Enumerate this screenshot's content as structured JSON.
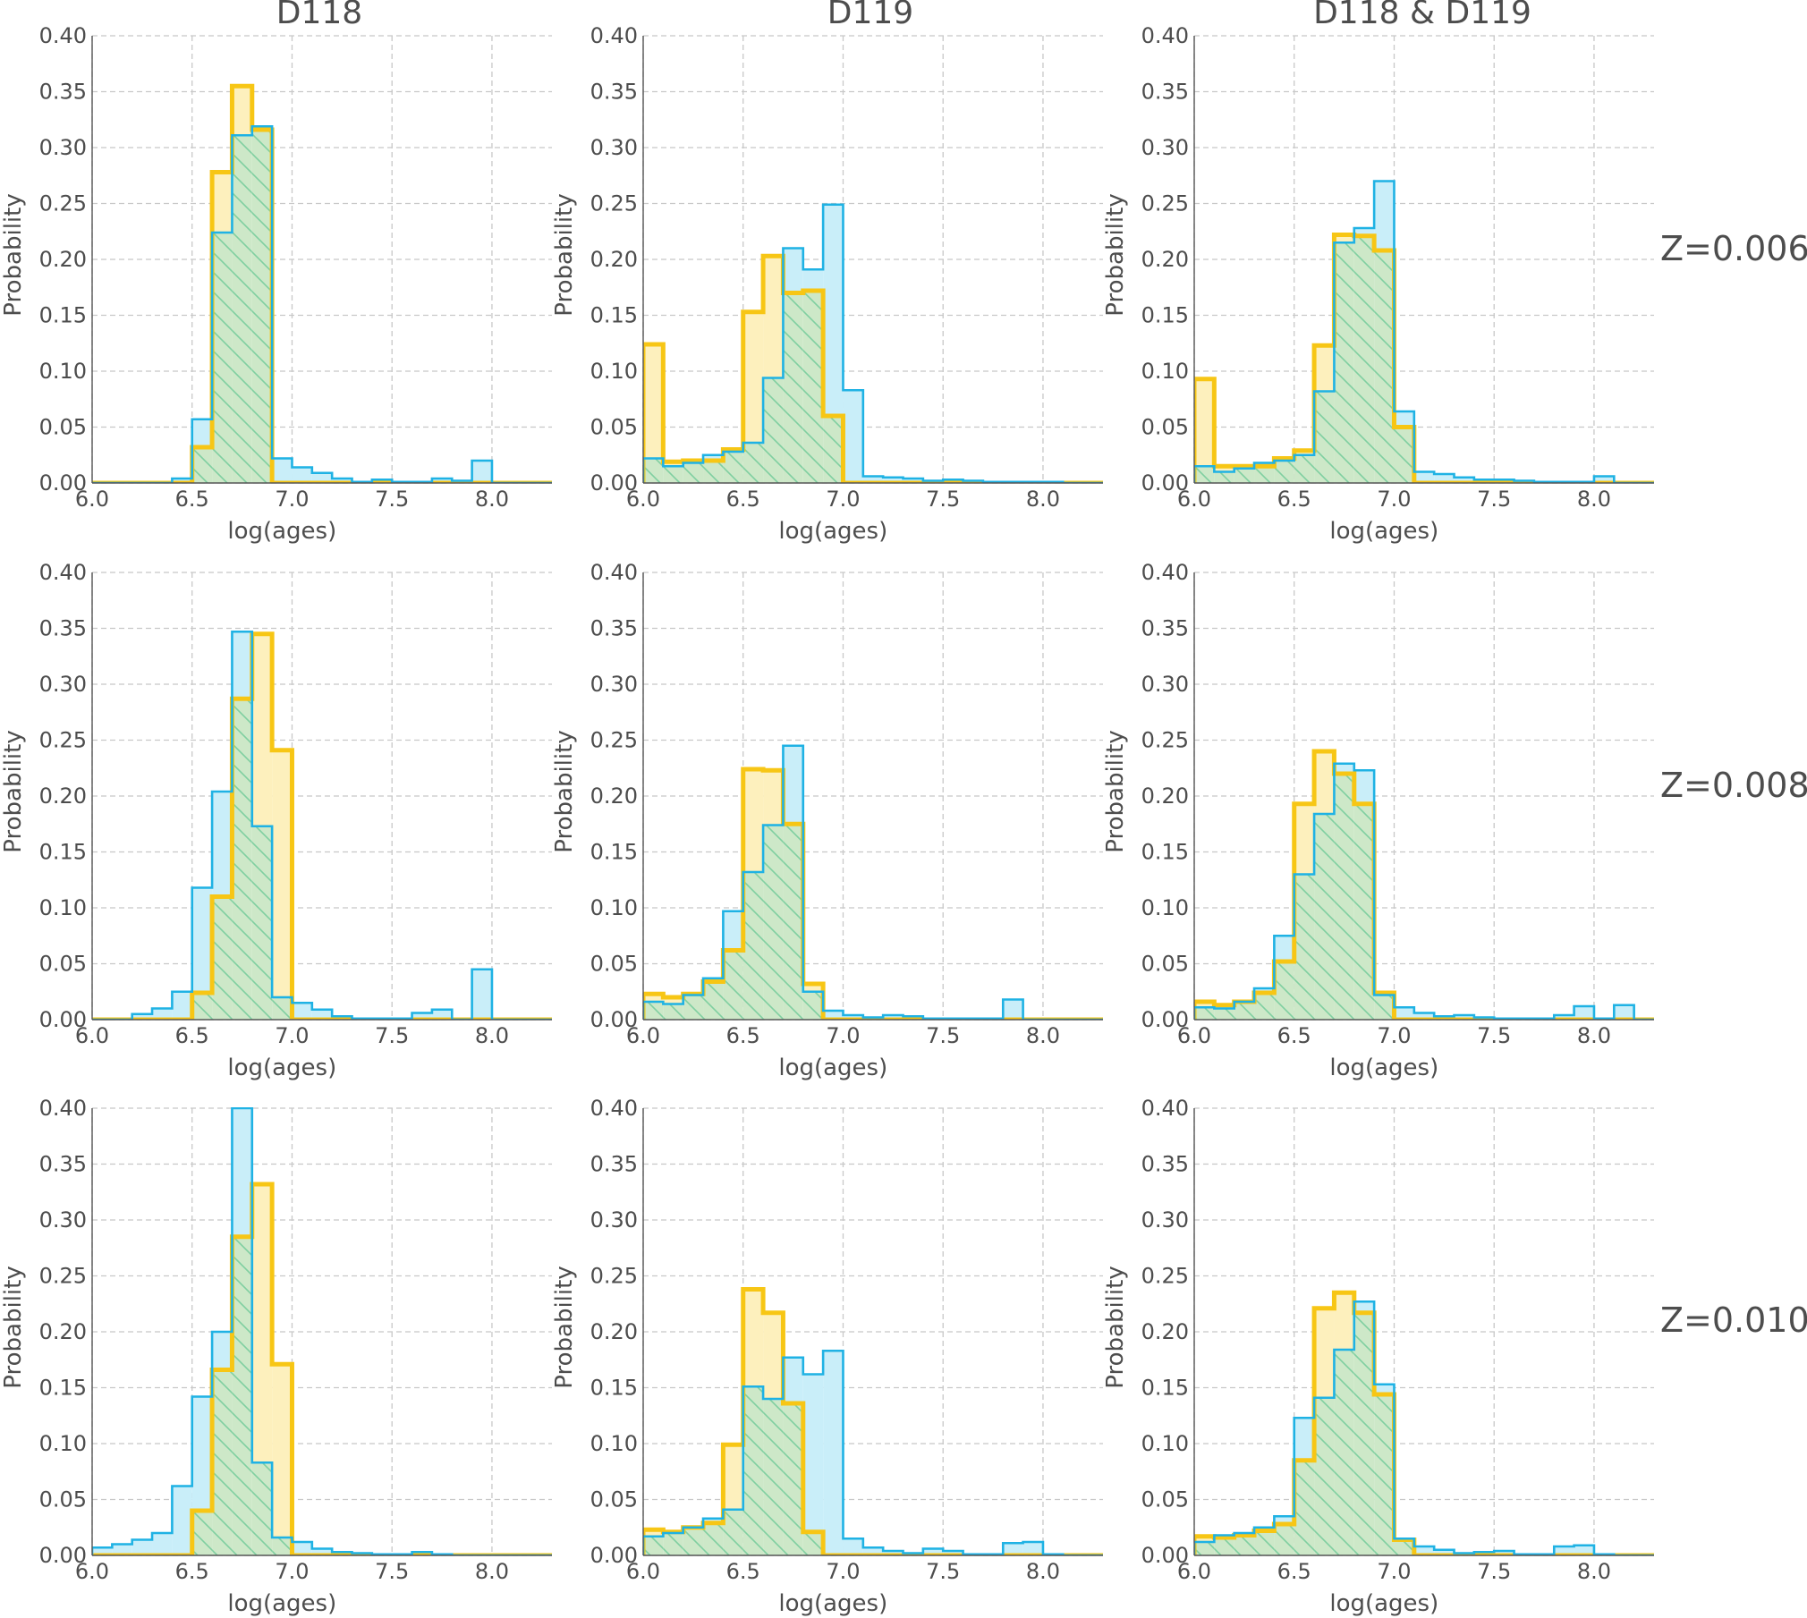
{
  "figure": {
    "columns": [
      "D118",
      "D119",
      "D118 & D119"
    ],
    "rows": [
      "Z=0.006",
      "Z=0.008",
      "Z=0.010"
    ],
    "xlabel": "log(ages)",
    "ylabel": "Probability",
    "colors": {
      "yellow": "#F7C615",
      "blue": "#1FB2E4",
      "overlap_fill": "#cde8c8",
      "hatch": "#7fcfa0",
      "grid": "#c8c8c8",
      "text": "#4d4d4d"
    }
  },
  "chart_data": [
    {
      "type": "bar",
      "title": "D118",
      "row_label": "Z=0.006",
      "xlabel": "log(ages)",
      "ylabel": "Probability",
      "xlim": [
        6.0,
        8.3
      ],
      "ylim": [
        0,
        0.4
      ],
      "grid": true,
      "bin_start": 6.0,
      "bin_width": 0.1,
      "series": [
        {
          "name": "",
          "color": "yellow",
          "values": [
            0,
            0,
            0,
            0,
            0,
            0.032,
            0.278,
            0.355,
            0.316,
            0,
            0,
            0,
            0,
            0,
            0,
            0,
            0,
            0,
            0,
            0,
            0,
            0,
            0
          ]
        },
        {
          "name": "",
          "color": "blue",
          "values": [
            0,
            0,
            0,
            0,
            0.004,
            0.057,
            0.224,
            0.311,
            0.319,
            0.022,
            0.014,
            0.009,
            0.004,
            0.001,
            0.003,
            0.001,
            0.001,
            0.004,
            0.002,
            0.02,
            0,
            0,
            0
          ]
        }
      ]
    },
    {
      "type": "bar",
      "title": "D119",
      "row_label": "Z=0.006",
      "xlabel": "log(ages)",
      "ylabel": "Probability",
      "xlim": [
        6.0,
        8.3
      ],
      "ylim": [
        0,
        0.4
      ],
      "grid": true,
      "bin_start": 6.0,
      "bin_width": 0.1,
      "series": [
        {
          "name": "",
          "color": "yellow",
          "values": [
            0.124,
            0.019,
            0.02,
            0.02,
            0.03,
            0.153,
            0.203,
            0.17,
            0.172,
            0.06,
            0,
            0,
            0,
            0,
            0,
            0,
            0,
            0,
            0,
            0,
            0,
            0,
            0
          ]
        },
        {
          "name": "",
          "color": "blue",
          "values": [
            0.022,
            0.015,
            0.018,
            0.025,
            0.028,
            0.036,
            0.094,
            0.21,
            0.191,
            0.249,
            0.083,
            0.006,
            0.005,
            0.004,
            0.002,
            0.003,
            0.002,
            0.001,
            0.001,
            0.001,
            0.001,
            0,
            0
          ]
        }
      ]
    },
    {
      "type": "bar",
      "title": "D118 & D119",
      "row_label": "Z=0.006",
      "xlabel": "log(ages)",
      "ylabel": "Probability",
      "xlim": [
        6.0,
        8.3
      ],
      "ylim": [
        0,
        0.4
      ],
      "grid": true,
      "bin_start": 6.0,
      "bin_width": 0.1,
      "series": [
        {
          "name": "",
          "color": "yellow",
          "values": [
            0.093,
            0.015,
            0.015,
            0.015,
            0.022,
            0.029,
            0.123,
            0.222,
            0.221,
            0.208,
            0.05,
            0,
            0,
            0,
            0,
            0,
            0,
            0,
            0,
            0,
            0,
            0,
            0
          ]
        },
        {
          "name": "",
          "color": "blue",
          "values": [
            0.015,
            0.01,
            0.013,
            0.018,
            0.02,
            0.025,
            0.082,
            0.215,
            0.228,
            0.27,
            0.064,
            0.01,
            0.008,
            0.005,
            0.003,
            0.003,
            0.002,
            0.001,
            0.001,
            0.001,
            0.006,
            0,
            0
          ]
        }
      ]
    },
    {
      "type": "bar",
      "title": "D118",
      "row_label": "Z=0.008",
      "xlabel": "log(ages)",
      "ylabel": "Probability",
      "xlim": [
        6.0,
        8.3
      ],
      "ylim": [
        0,
        0.4
      ],
      "grid": true,
      "bin_start": 6.0,
      "bin_width": 0.1,
      "series": [
        {
          "name": "",
          "color": "yellow",
          "values": [
            0,
            0,
            0,
            0,
            0,
            0.024,
            0.11,
            0.287,
            0.345,
            0.241,
            0,
            0,
            0,
            0,
            0,
            0,
            0,
            0,
            0,
            0,
            0,
            0,
            0
          ]
        },
        {
          "name": "",
          "color": "blue",
          "values": [
            0,
            0,
            0.005,
            0.01,
            0.025,
            0.118,
            0.204,
            0.347,
            0.173,
            0.02,
            0.015,
            0.009,
            0.003,
            0.001,
            0.001,
            0.001,
            0.006,
            0.009,
            0,
            0.045,
            0,
            0,
            0
          ]
        }
      ]
    },
    {
      "type": "bar",
      "title": "D119",
      "row_label": "Z=0.008",
      "xlabel": "log(ages)",
      "ylabel": "Probability",
      "xlim": [
        6.0,
        8.3
      ],
      "ylim": [
        0,
        0.4
      ],
      "grid": true,
      "bin_start": 6.0,
      "bin_width": 0.1,
      "series": [
        {
          "name": "",
          "color": "yellow",
          "values": [
            0.023,
            0.02,
            0.023,
            0.034,
            0.062,
            0.224,
            0.223,
            0.175,
            0.032,
            0,
            0,
            0,
            0,
            0,
            0,
            0,
            0,
            0,
            0,
            0,
            0,
            0,
            0
          ]
        },
        {
          "name": "",
          "color": "blue",
          "values": [
            0.016,
            0.014,
            0.022,
            0.037,
            0.097,
            0.132,
            0.174,
            0.245,
            0.025,
            0.008,
            0.004,
            0.002,
            0.004,
            0.003,
            0.001,
            0.001,
            0.001,
            0.001,
            0.018,
            0,
            0,
            0,
            0
          ]
        }
      ]
    },
    {
      "type": "bar",
      "title": "D118 & D119",
      "row_label": "Z=0.008",
      "xlabel": "log(ages)",
      "ylabel": "Probability",
      "xlim": [
        6.0,
        8.3
      ],
      "ylim": [
        0,
        0.4
      ],
      "grid": true,
      "bin_start": 6.0,
      "bin_width": 0.1,
      "series": [
        {
          "name": "",
          "color": "yellow",
          "values": [
            0.016,
            0.013,
            0.016,
            0.024,
            0.052,
            0.193,
            0.24,
            0.22,
            0.193,
            0.024,
            0,
            0,
            0,
            0,
            0,
            0,
            0,
            0,
            0,
            0,
            0,
            0,
            0
          ]
        },
        {
          "name": "",
          "color": "blue",
          "values": [
            0.011,
            0.01,
            0.016,
            0.028,
            0.075,
            0.13,
            0.184,
            0.229,
            0.223,
            0.022,
            0.011,
            0.006,
            0.003,
            0.004,
            0.002,
            0.001,
            0.001,
            0.001,
            0.004,
            0.012,
            0.001,
            0.013,
            0
          ]
        }
      ]
    },
    {
      "type": "bar",
      "title": "D118",
      "row_label": "Z=0.010",
      "xlabel": "log(ages)",
      "ylabel": "Probability",
      "xlim": [
        6.0,
        8.3
      ],
      "ylim": [
        0,
        0.4
      ],
      "grid": true,
      "bin_start": 6.0,
      "bin_width": 0.1,
      "series": [
        {
          "name": "",
          "color": "yellow",
          "values": [
            0,
            0,
            0,
            0,
            0,
            0.04,
            0.166,
            0.285,
            0.332,
            0.171,
            0,
            0,
            0,
            0,
            0,
            0,
            0,
            0,
            0,
            0,
            0,
            0,
            0
          ]
        },
        {
          "name": "",
          "color": "blue",
          "values": [
            0.007,
            0.01,
            0.014,
            0.02,
            0.062,
            0.142,
            0.2,
            0.4,
            0.083,
            0.016,
            0.012,
            0.006,
            0.003,
            0.002,
            0.001,
            0.001,
            0.003,
            0.001,
            0,
            0,
            0,
            0,
            0
          ]
        }
      ]
    },
    {
      "type": "bar",
      "title": "D119",
      "row_label": "Z=0.010",
      "xlabel": "log(ages)",
      "ylabel": "Probability",
      "xlim": [
        6.0,
        8.3
      ],
      "ylim": [
        0,
        0.4
      ],
      "grid": true,
      "bin_start": 6.0,
      "bin_width": 0.1,
      "series": [
        {
          "name": "",
          "color": "yellow",
          "values": [
            0.023,
            0.021,
            0.025,
            0.029,
            0.099,
            0.238,
            0.217,
            0.136,
            0.021,
            0,
            0,
            0,
            0,
            0,
            0,
            0,
            0,
            0,
            0,
            0,
            0,
            0,
            0
          ]
        },
        {
          "name": "",
          "color": "blue",
          "values": [
            0.017,
            0.02,
            0.025,
            0.033,
            0.041,
            0.151,
            0.14,
            0.177,
            0.162,
            0.183,
            0.015,
            0.007,
            0.004,
            0.002,
            0.006,
            0.004,
            0.001,
            0.001,
            0.011,
            0.012,
            0.001,
            0,
            0
          ]
        }
      ]
    },
    {
      "type": "bar",
      "title": "D118 & D119",
      "row_label": "Z=0.010",
      "xlabel": "log(ages)",
      "ylabel": "Probability",
      "xlim": [
        6.0,
        8.3
      ],
      "ylim": [
        0,
        0.4
      ],
      "grid": true,
      "bin_start": 6.0,
      "bin_width": 0.1,
      "series": [
        {
          "name": "",
          "color": "yellow",
          "values": [
            0.017,
            0.016,
            0.018,
            0.022,
            0.028,
            0.085,
            0.221,
            0.235,
            0.217,
            0.144,
            0.014,
            0,
            0,
            0,
            0,
            0,
            0,
            0,
            0,
            0,
            0,
            0,
            0
          ]
        },
        {
          "name": "",
          "color": "blue",
          "values": [
            0.012,
            0.018,
            0.02,
            0.025,
            0.035,
            0.123,
            0.141,
            0.184,
            0.227,
            0.153,
            0.015,
            0.008,
            0.005,
            0.002,
            0.003,
            0.004,
            0.001,
            0.001,
            0.008,
            0.009,
            0.001,
            0,
            0
          ]
        }
      ]
    }
  ]
}
